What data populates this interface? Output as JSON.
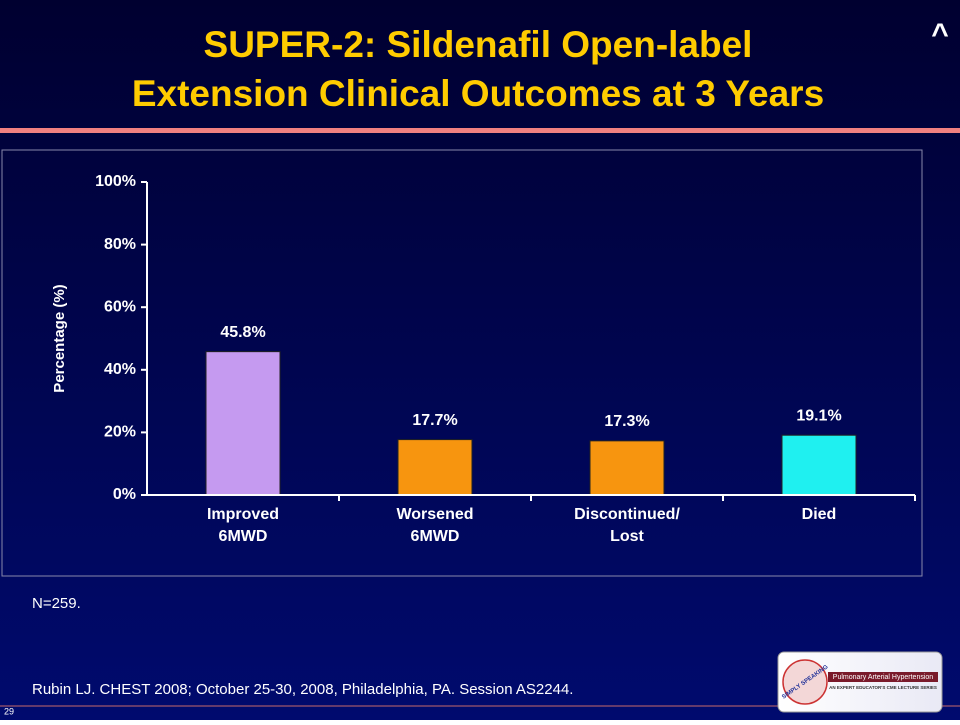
{
  "slide": {
    "title": [
      "SUPER-2: Sildenafil Open-label",
      "Extension Clinical Outcomes at 3 Years"
    ],
    "corner_mark": "^",
    "note": "N=259.",
    "citation": "Rubin LJ. CHEST 2008; October 25-30, 2008, Philadelphia, PA. Session AS2244.",
    "page_number": "29",
    "logo": {
      "name": "SIMPLY SPEAKING",
      "subtitle": "Pulmonary Arterial Hypertension",
      "tagline": "AN EXPERT EDUCATOR'S CME LECTURE SERIES"
    }
  },
  "chart_data": {
    "type": "bar",
    "y_label": "Percentage (%)",
    "categories": [
      [
        "Improved",
        "6MWD"
      ],
      [
        "Worsened",
        "6MWD"
      ],
      [
        "Discontinued/",
        "Lost"
      ],
      [
        "Died"
      ]
    ],
    "values": [
      45.8,
      17.7,
      17.3,
      19.1
    ],
    "value_labels": [
      "45.8%",
      "17.7%",
      "17.3%",
      "19.1%"
    ],
    "colors": [
      "#c59af0",
      "#f7950f",
      "#f7950f",
      "#1ff0f0"
    ],
    "ylim": [
      0,
      100
    ],
    "yticks": [
      {
        "value": 0,
        "label": "0%"
      },
      {
        "value": 20,
        "label": "20%"
      },
      {
        "value": 40,
        "label": "40%"
      },
      {
        "value": 60,
        "label": "60%"
      },
      {
        "value": 80,
        "label": "80%"
      },
      {
        "value": 100,
        "label": "100%"
      }
    ]
  }
}
